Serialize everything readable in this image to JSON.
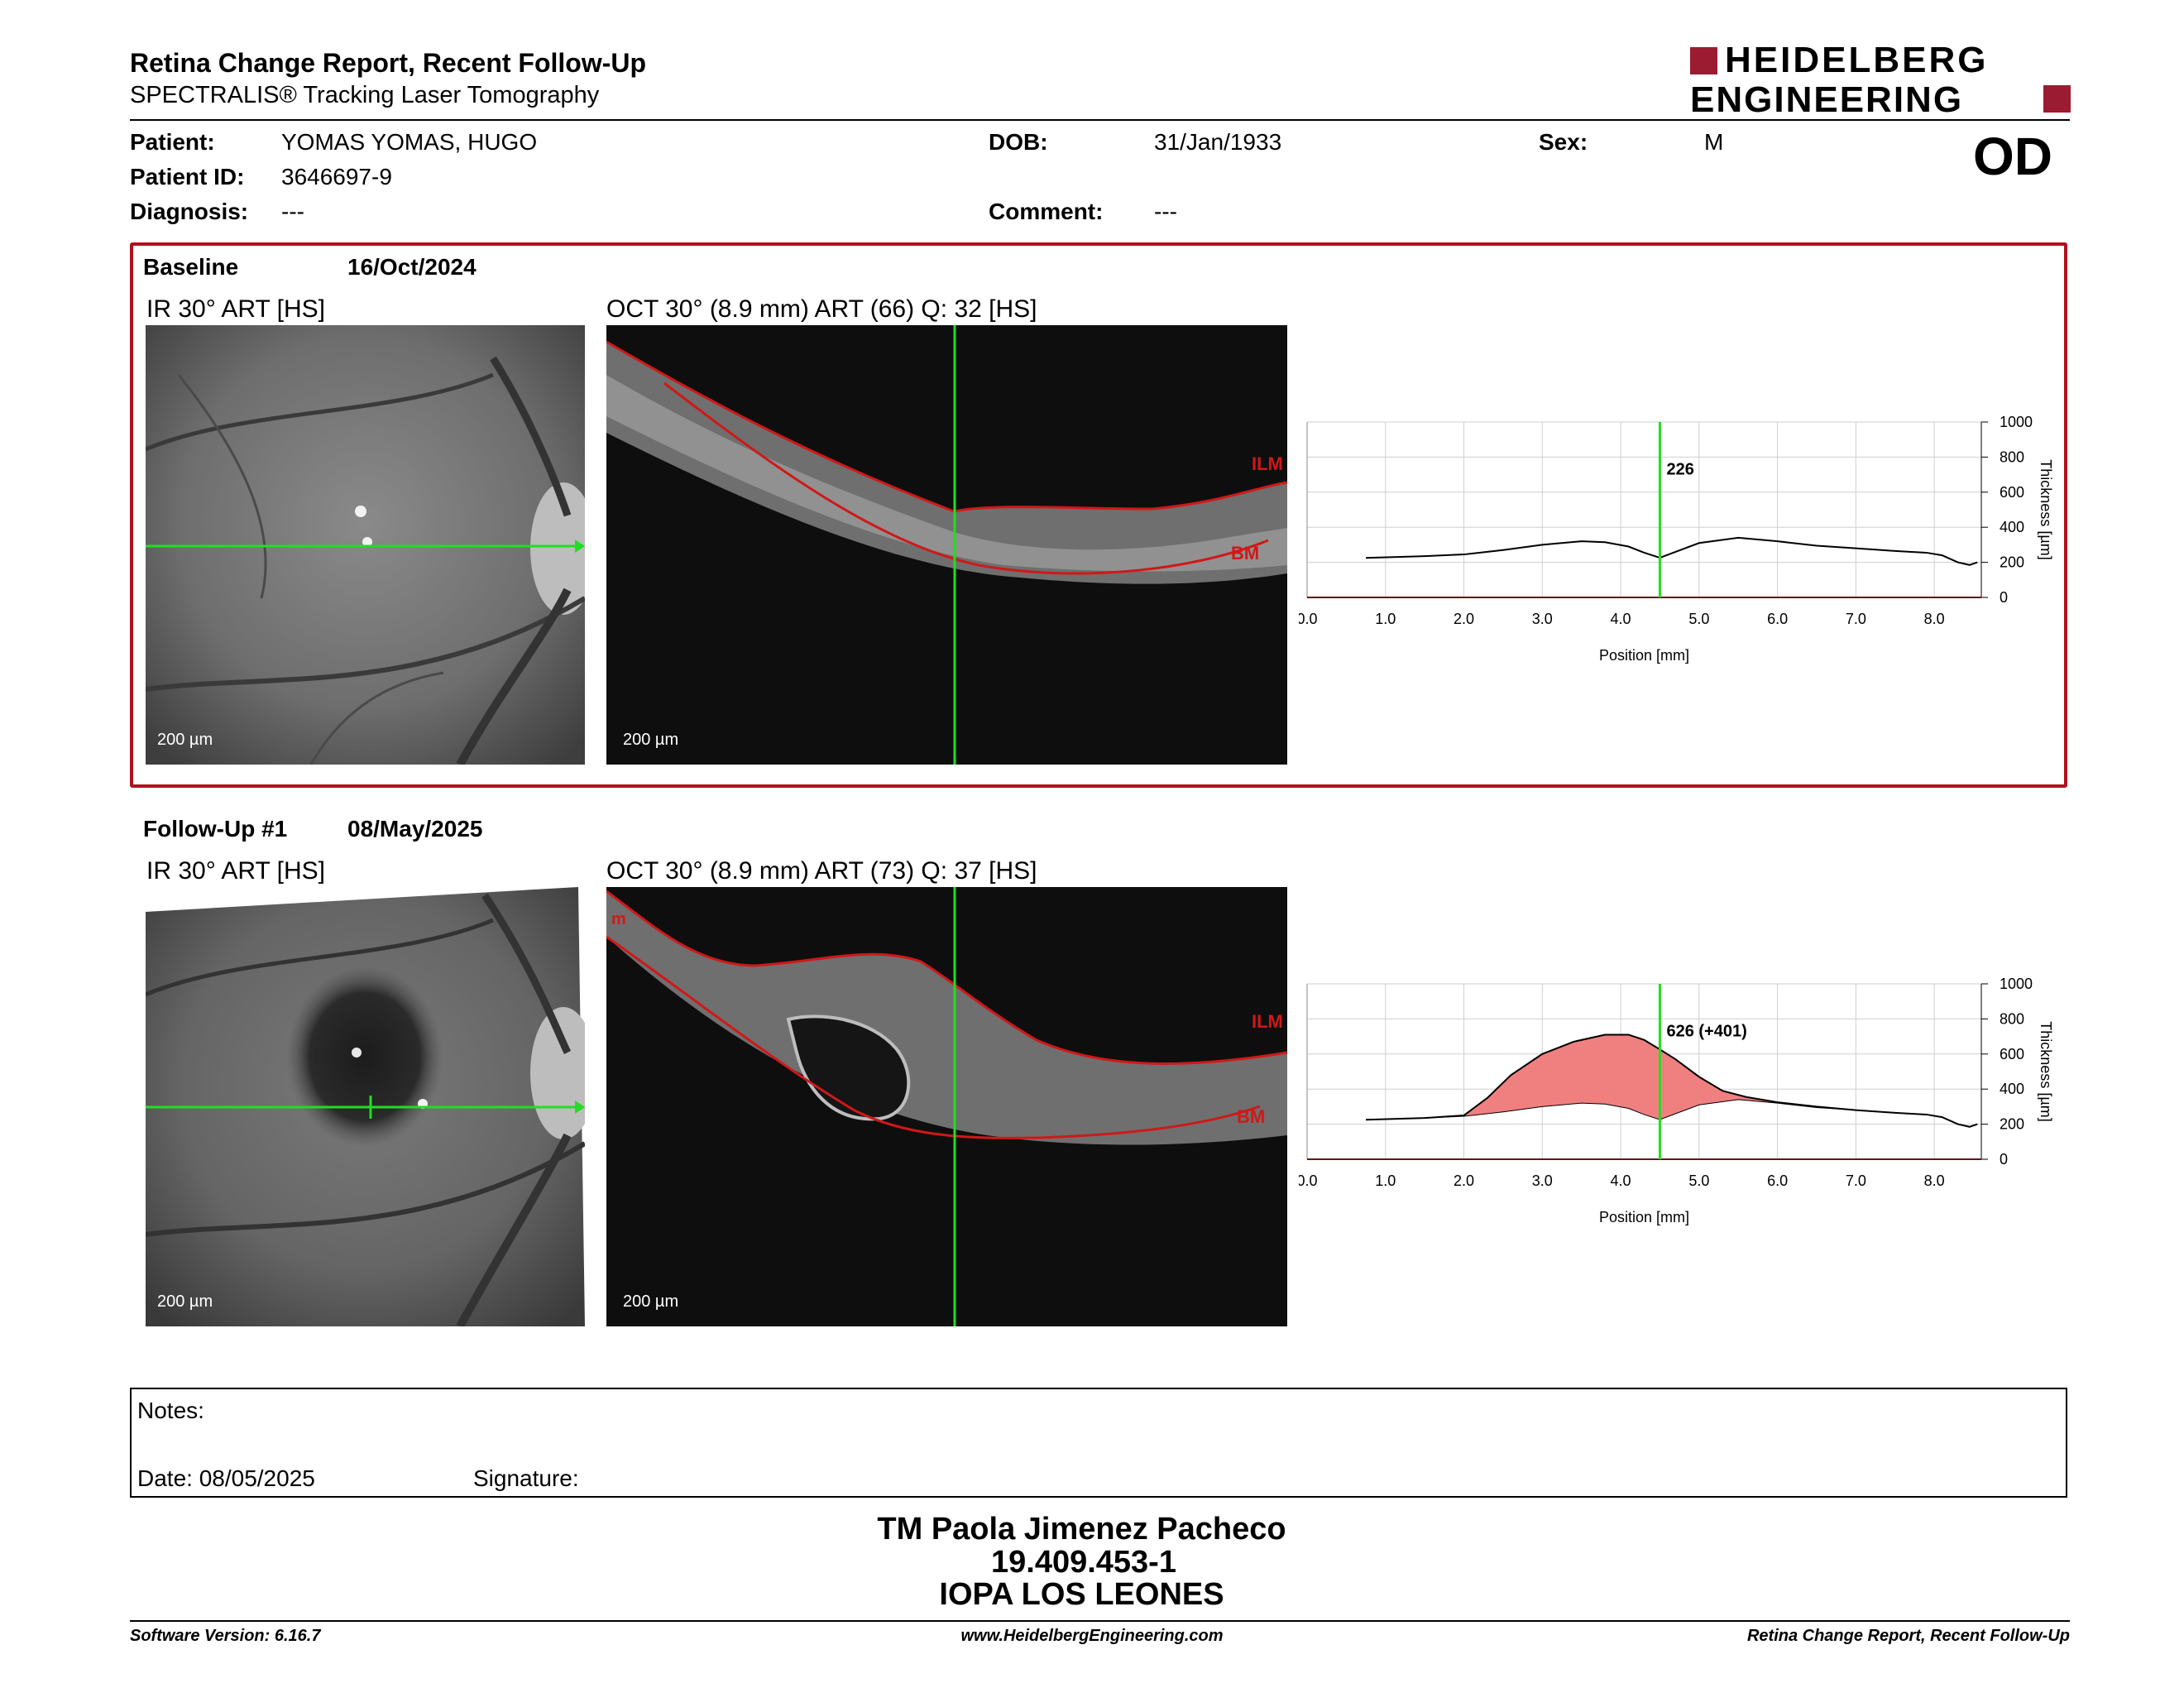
{
  "header": {
    "title": "Retina Change Report, Recent Follow-Up",
    "subtitle": "SPECTRALIS® Tracking Laser Tomography",
    "logo_line1": "HEIDELBERG",
    "logo_line2": "ENGINEERING",
    "eye": "OD"
  },
  "patient": {
    "name_label": "Patient:",
    "name": "YOMAS YOMAS, HUGO",
    "id_label": "Patient ID:",
    "id": "3646697-9",
    "diagnosis_label": "Diagnosis:",
    "diagnosis": "---",
    "dob_label": "DOB:",
    "dob": "31/Jan/1933",
    "comment_label": "Comment:",
    "comment": "---",
    "sex_label": "Sex:",
    "sex": "M"
  },
  "baseline": {
    "label": "Baseline",
    "date": "16/Oct/2024",
    "ir_title": "IR 30° ART [HS]",
    "oct_title": "OCT 30° (8.9 mm) ART (66) Q: 32 [HS]",
    "scale": "200 µm",
    "ilm": "ILM",
    "bm": "BM"
  },
  "followup": {
    "label": "Follow-Up #1",
    "date": "08/May/2025",
    "ir_title": "IR 30° ART [HS]",
    "oct_title": "OCT 30° (8.9 mm) ART (73) Q: 37 [HS]",
    "scale": "200 µm",
    "ilm": "ILM",
    "bm": "BM"
  },
  "chart_data": [
    {
      "type": "line",
      "xlabel": "Position [mm]",
      "ylabel": "Thickness [µm]",
      "xlim": [
        0,
        8.6
      ],
      "ylim": [
        0,
        1000
      ],
      "xticks": [
        "0.0",
        "1.0",
        "2.0",
        "3.0",
        "4.0",
        "5.0",
        "6.0",
        "7.0",
        "8.0"
      ],
      "yticks": [
        "0",
        "200",
        "400",
        "600",
        "800",
        "1000"
      ],
      "cursor_x": 4.5,
      "cursor_label": "226",
      "series": [
        {
          "x": [
            0.75,
            1.5,
            2.0,
            2.5,
            3.0,
            3.5,
            3.8,
            4.1,
            4.3,
            4.5,
            4.7,
            5.0,
            5.5,
            6.0,
            6.5,
            7.0,
            7.5,
            7.9,
            8.1,
            8.3,
            8.45,
            8.55
          ],
          "y": [
            225,
            235,
            245,
            270,
            300,
            320,
            315,
            290,
            255,
            226,
            260,
            310,
            340,
            320,
            295,
            280,
            265,
            255,
            240,
            200,
            185,
            200
          ]
        }
      ]
    },
    {
      "type": "area",
      "xlabel": "Position [mm]",
      "ylabel": "Thickness [µm]",
      "xlim": [
        0,
        8.6
      ],
      "ylim": [
        0,
        1000
      ],
      "xticks": [
        "0.0",
        "1.0",
        "2.0",
        "3.0",
        "4.0",
        "5.0",
        "6.0",
        "7.0",
        "8.0"
      ],
      "yticks": [
        "0",
        "200",
        "400",
        "600",
        "800",
        "1000"
      ],
      "cursor_x": 4.5,
      "cursor_label": "626 (+401)",
      "series": [
        {
          "x": [
            0.75,
            1.5,
            2.0,
            2.3,
            2.6,
            3.0,
            3.4,
            3.8,
            4.1,
            4.3,
            4.5,
            4.7,
            5.0,
            5.3,
            5.6,
            6.0,
            6.5,
            7.0,
            7.5,
            7.9,
            8.1,
            8.3,
            8.45,
            8.55
          ],
          "y": [
            225,
            235,
            250,
            350,
            480,
            600,
            670,
            710,
            710,
            680,
            626,
            570,
            470,
            390,
            355,
            325,
            300,
            280,
            265,
            255,
            240,
            200,
            185,
            200
          ]
        },
        {
          "x": [
            0.75,
            1.5,
            2.0,
            2.5,
            3.0,
            3.5,
            3.8,
            4.1,
            4.3,
            4.5,
            4.7,
            5.0,
            5.5,
            6.0,
            6.5,
            7.0,
            7.5,
            7.9,
            8.1,
            8.3,
            8.45,
            8.55
          ],
          "y": [
            225,
            235,
            245,
            270,
            300,
            320,
            315,
            290,
            255,
            226,
            260,
            310,
            340,
            320,
            295,
            280,
            265,
            255,
            240,
            200,
            185,
            200
          ]
        }
      ]
    }
  ],
  "notes": {
    "label": "Notes:",
    "date_label": "Date: 08/05/2025",
    "signature_label": "Signature:"
  },
  "signature_block": {
    "line1": "TM Paola Jimenez Pacheco",
    "line2": "19.409.453-1",
    "line3": "IOPA LOS LEONES"
  },
  "footer": {
    "software": "Software Version: 6.16.7",
    "url": "www.HeidelbergEngineering.com",
    "report": "Retina Change Report, Recent Follow-Up"
  },
  "colors": {
    "accent_red": "#b0101e",
    "marker_green": "#22dd22",
    "fill_red": "#f08080"
  }
}
